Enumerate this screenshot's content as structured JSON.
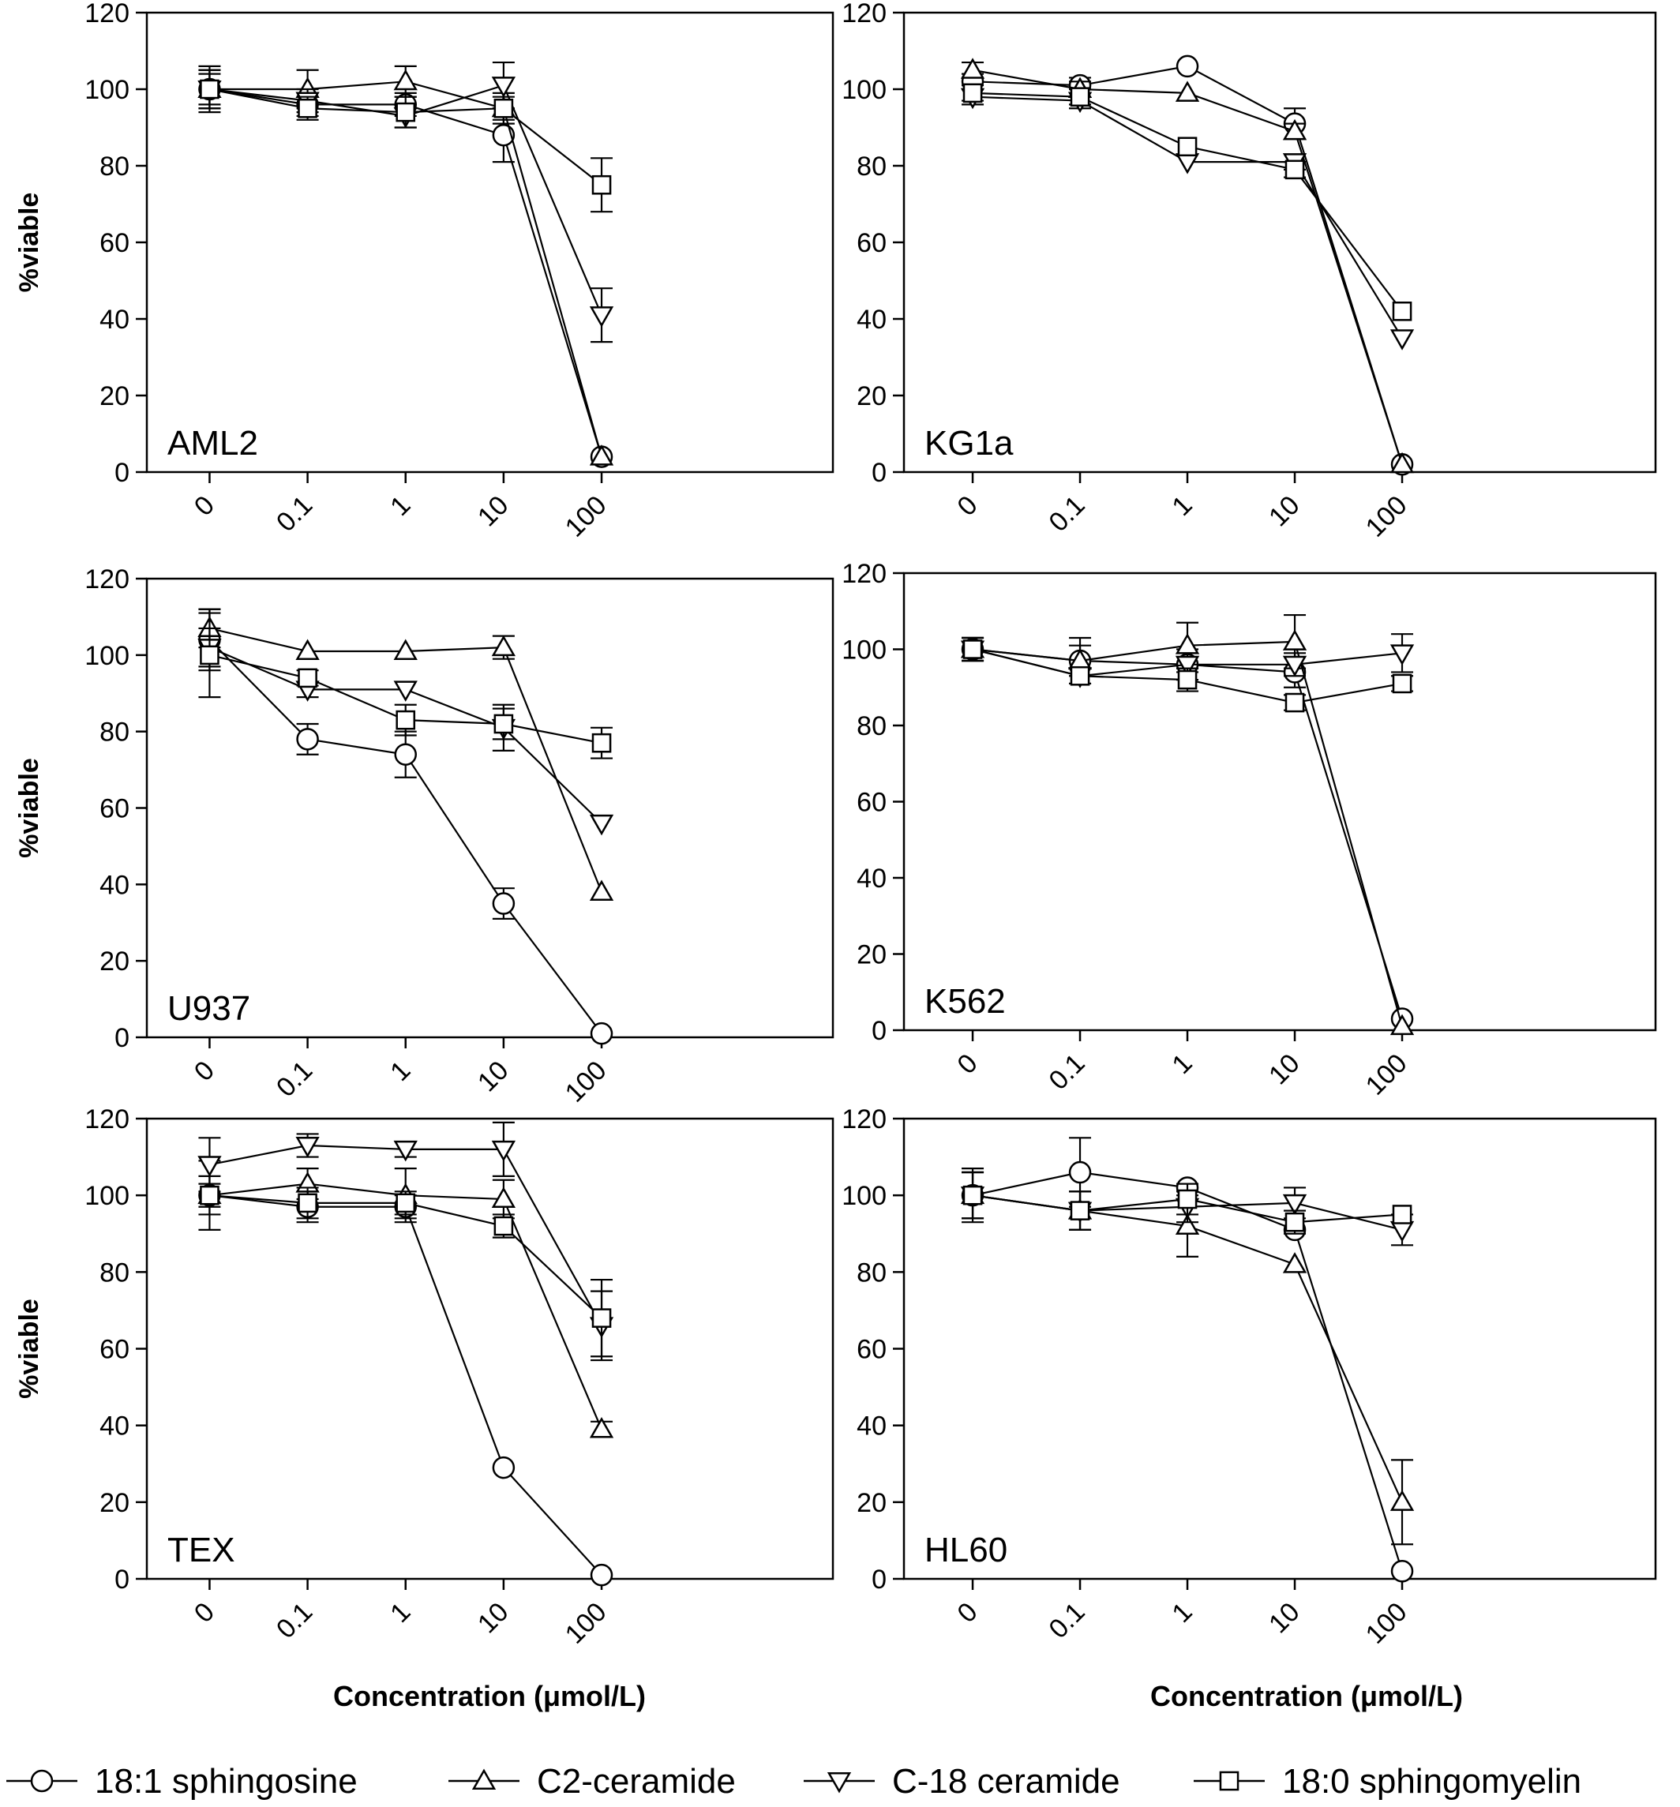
{
  "chart_data": {
    "type": "line",
    "x_categories": [
      "0",
      "0.1",
      "1",
      "10",
      "100"
    ],
    "x_label": "Concentration (μmol/L)",
    "y_label": "%viable",
    "y_ticks": [
      "0",
      "20",
      "40",
      "60",
      "80",
      "100",
      "120"
    ],
    "ylim": [
      0,
      120
    ],
    "legend": {
      "placement": "bottom",
      "entries": [
        {
          "name": "18:1 sphingosine",
          "marker": "circle"
        },
        {
          "name": "C2-ceramide",
          "marker": "triangle-up"
        },
        {
          "name": "C-18 ceramide",
          "marker": "triangle-down"
        },
        {
          "name": "18:0 sphingomyelin",
          "marker": "square"
        }
      ]
    },
    "panels": [
      {
        "label": "AML2",
        "series": [
          {
            "name": "18:1 sphingosine",
            "values": [
              100,
              96,
              96,
              88,
              4
            ],
            "errors": [
              6,
              3,
              3,
              7,
              1
            ]
          },
          {
            "name": "C2-ceramide",
            "values": [
              100,
              100,
              102,
              95,
              4
            ],
            "errors": [
              4,
              5,
              4,
              4,
              1
            ]
          },
          {
            "name": "C-18 ceramide",
            "values": [
              100,
              97,
              93,
              101,
              41
            ],
            "errors": [
              5,
              3,
              3,
              6,
              7
            ]
          },
          {
            "name": "18:0 sphingomyelin",
            "values": [
              100,
              95,
              94,
              95,
              75
            ],
            "errors": [
              5,
              3,
              4,
              3,
              7
            ]
          }
        ]
      },
      {
        "label": "KG1a",
        "series": [
          {
            "name": "18:1 sphingosine",
            "values": [
              102,
              101,
              106,
              91,
              2
            ],
            "errors": [
              2,
              2,
              1,
              4,
              1
            ]
          },
          {
            "name": "C2-ceramide",
            "values": [
              105,
              100,
              99,
              89,
              2
            ],
            "errors": [
              2,
              2,
              1,
              2,
              1
            ]
          },
          {
            "name": "C-18 ceramide",
            "values": [
              98,
              97,
              81,
              81,
              35
            ],
            "errors": [
              2,
              2,
              1,
              2,
              1
            ]
          },
          {
            "name": "18:0 sphingomyelin",
            "values": [
              99,
              98,
              85,
              79,
              42
            ],
            "errors": [
              2,
              2,
              1,
              2,
              1
            ]
          }
        ]
      },
      {
        "label": "U937",
        "series": [
          {
            "name": "18:1 sphingosine",
            "values": [
              104,
              78,
              74,
              35,
              1
            ],
            "errors": [
              8,
              4,
              6,
              4,
              1
            ]
          },
          {
            "name": "C2-ceramide",
            "values": [
              107,
              101,
              101,
              102,
              38
            ],
            "errors": [
              5,
              1,
              1,
              3,
              1
            ]
          },
          {
            "name": "C-18 ceramide",
            "values": [
              102,
              91,
              91,
              81,
              56
            ],
            "errors": [
              5,
              2,
              1,
              6,
              1
            ]
          },
          {
            "name": "18:0 sphingomyelin",
            "values": [
              100,
              94,
              83,
              82,
              77
            ],
            "errors": [
              11,
              2,
              4,
              4,
              4
            ]
          }
        ]
      },
      {
        "label": "K562",
        "series": [
          {
            "name": "18:1 sphingosine",
            "values": [
              100,
              97,
              96,
              94,
              3
            ],
            "errors": [
              3,
              6,
              4,
              4,
              1
            ]
          },
          {
            "name": "C2-ceramide",
            "values": [
              100,
              97,
              101,
              102,
              1
            ],
            "errors": [
              3,
              4,
              6,
              7,
              1
            ]
          },
          {
            "name": "C-18 ceramide",
            "values": [
              100,
              93,
              96,
              96,
              99
            ],
            "errors": [
              3,
              2,
              2,
              3,
              5
            ]
          },
          {
            "name": "18:0 sphingomyelin",
            "values": [
              100,
              93,
              92,
              86,
              91
            ],
            "errors": [
              3,
              2,
              3,
              2,
              2
            ]
          }
        ]
      },
      {
        "label": "TEX",
        "series": [
          {
            "name": "18:1 sphingosine",
            "values": [
              100,
              97,
              97,
              29,
              1
            ],
            "errors": [
              9,
              4,
              3,
              1,
              1
            ]
          },
          {
            "name": "C2-ceramide",
            "values": [
              100,
              103,
              100,
              99,
              39
            ],
            "errors": [
              5,
              4,
              7,
              5,
              2
            ]
          },
          {
            "name": "C-18 ceramide",
            "values": [
              108,
              113,
              112,
              112,
              66
            ],
            "errors": [
              7,
              3,
              2,
              7,
              9
            ]
          },
          {
            "name": "18:0 sphingomyelin",
            "values": [
              100,
              98,
              98,
              92,
              68
            ],
            "errors": [
              3,
              4,
              3,
              3,
              10
            ]
          }
        ]
      },
      {
        "label": "HL60",
        "series": [
          {
            "name": "18:1 sphingosine",
            "values": [
              100,
              106,
              102,
              91,
              2
            ],
            "errors": [
              6,
              9,
              1,
              1,
              1
            ]
          },
          {
            "name": "C2-ceramide",
            "values": [
              100,
              96,
              92,
              82,
              20
            ],
            "errors": [
              7,
              5,
              8,
              1,
              11
            ]
          },
          {
            "name": "C-18 ceramide",
            "values": [
              100,
              96,
              97,
              98,
              91
            ],
            "errors": [
              6,
              5,
              4,
              4,
              4
            ]
          },
          {
            "name": "18:0 sphingomyelin",
            "values": [
              100,
              96,
              99,
              93,
              95
            ],
            "errors": [
              6,
              5,
              4,
              3,
              1
            ]
          }
        ]
      }
    ]
  }
}
